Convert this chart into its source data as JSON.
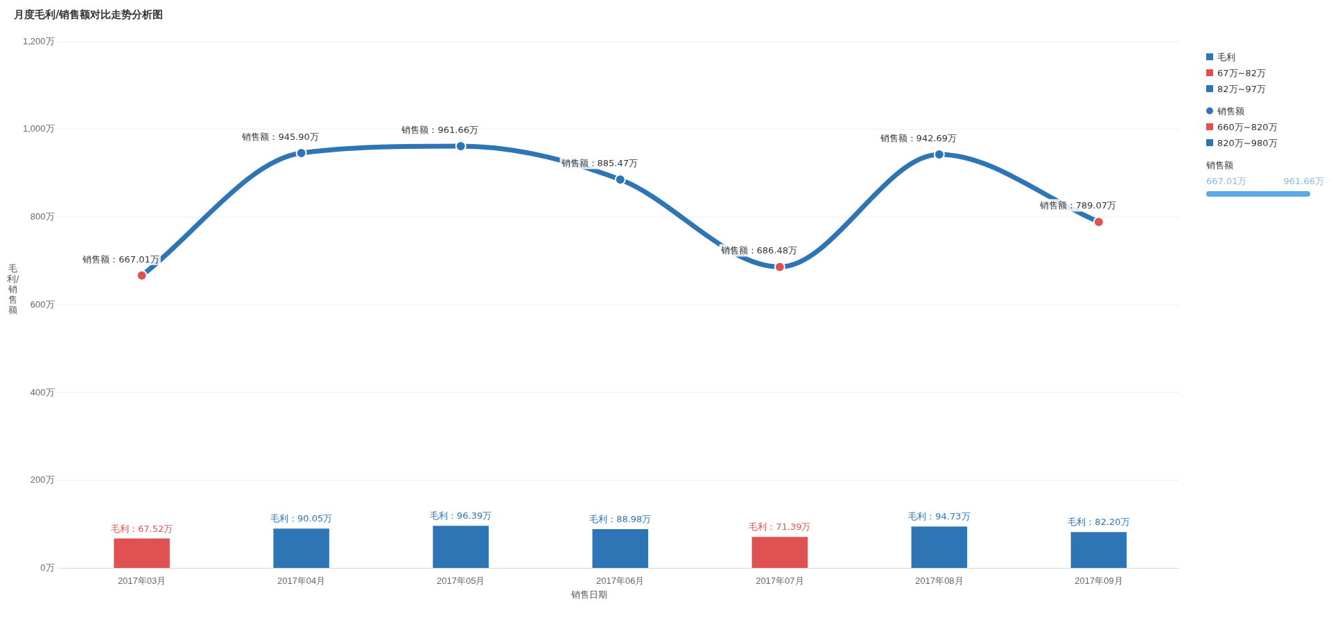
{
  "chart_data": {
    "type": "bar",
    "title": "月度毛利/销售额对比走势分析图",
    "xlabel": "销售日期",
    "ylabel": "毛利/销售额",
    "categories": [
      "2017年03月",
      "2017年04月",
      "2017年05月",
      "2017年06月",
      "2017年07月",
      "2017年08月",
      "2017年09月"
    ],
    "series": [
      {
        "name": "毛利",
        "color": "#2e75b6",
        "colors": [
          "#e05252",
          "#2e75b6",
          "#2e75b6",
          "#2e75b6",
          "#e05252",
          "#2e75b6",
          "#2e75b6"
        ],
        "values": [
          67.52,
          90.05,
          96.39,
          88.98,
          71.39,
          94.73,
          82.2
        ],
        "value_labels": [
          "毛利：67.52万",
          "毛利：90.05万",
          "毛利：96.39万",
          "毛利：88.98万",
          "毛利：71.39万",
          "毛利：94.73万",
          "毛利：82.20万"
        ]
      },
      {
        "name": "销售额",
        "type": "line",
        "color": "#2e75b6",
        "colors": [
          "#e05252",
          "#2e75b6",
          "#2e75b6",
          "#2e75b6",
          "#e05252",
          "#2e75b6",
          "#e05252"
        ],
        "values": [
          667.01,
          945.9,
          961.66,
          885.47,
          686.48,
          942.69,
          789.07
        ],
        "value_labels": [
          "销售额：667.01万",
          "销售额：945.90万",
          "销售额：961.66万",
          "销售额：885.47万",
          "销售额：686.48万",
          "销售额：942.69万",
          "销售额：789.07万"
        ]
      }
    ],
    "ylim": [
      0,
      1200
    ],
    "yticks": [
      {
        "value": 0,
        "label": "0万"
      },
      {
        "value": 200,
        "label": "200万"
      },
      {
        "value": 400,
        "label": "400万"
      },
      {
        "value": 600,
        "label": "600万"
      },
      {
        "value": 800,
        "label": "800万"
      },
      {
        "value": 1000,
        "label": "1,000万"
      },
      {
        "value": 1200,
        "label": "1,200万"
      }
    ],
    "grid": "y",
    "legend": "right",
    "marker": "circle",
    "annotations": [
      "67万~82万",
      "82万~97万",
      "660万~820万",
      "820万~980万",
      "销售额",
      "667.01万",
      "961.66万"
    ]
  }
}
